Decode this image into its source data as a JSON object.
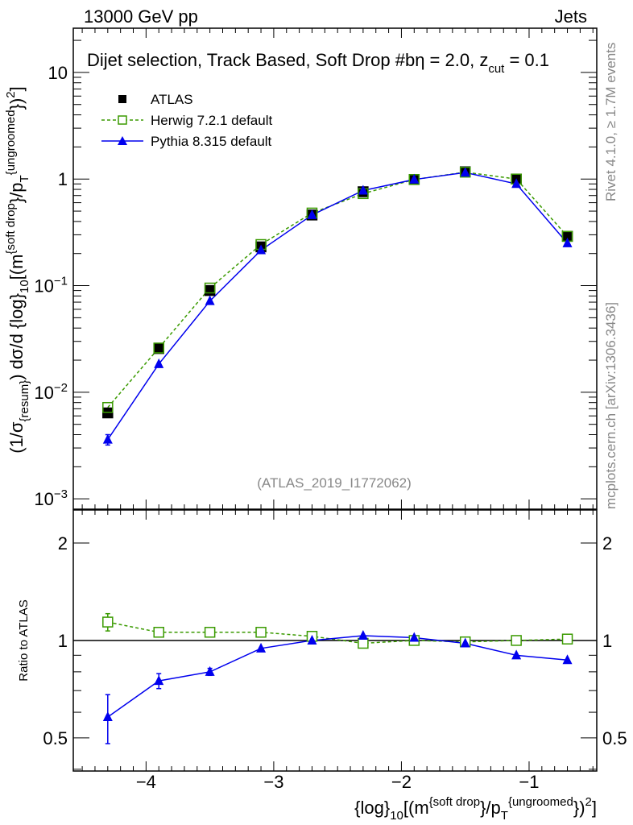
{
  "header": {
    "left": "13000 GeV pp",
    "right": "Jets"
  },
  "side_labels": {
    "rivet": "Rivet 4.1.0, ≥ 1.7M events",
    "mcplots": "mcplots.cern.ch [arXiv:1306.3436]"
  },
  "analysis_id": "(ATLAS_2019_I1772062)",
  "title_parts": {
    "a": "Dijet selection, Track Based, Soft Drop #b",
    "b": "η = 2.0, z",
    "sub": "cut",
    "c": " = 0.1"
  },
  "colors": {
    "atlas": "#000000",
    "herwig": "#3a9a00",
    "pythia": "#0000ee"
  },
  "chart_data": [
    {
      "type": "line",
      "title": "Dijet selection, Track Based, Soft Drop #bη = 2.0, z_cut = 0.1",
      "yscale": "log",
      "ylim": [
        0.0008,
        26
      ],
      "xlim": [
        -4.57,
        -0.47
      ],
      "ylabel_parts": [
        [
          "n",
          "(1/σ"
        ],
        [
          "sub",
          "{resum}"
        ],
        [
          "n",
          ") dσ/d {log}"
        ],
        [
          "sub",
          "10"
        ],
        [
          "n",
          "[(m"
        ],
        [
          "sup",
          "{soft drop"
        ],
        [
          "n",
          "}/p"
        ],
        [
          "sub",
          "T"
        ],
        [
          "sup",
          "{ungroomed"
        ],
        [
          "n",
          "})"
        ],
        [
          "sup",
          "2"
        ],
        [
          "n",
          "]"
        ]
      ],
      "yticks": [
        {
          "v": 0.001,
          "m": "10",
          "e": "−3"
        },
        {
          "v": 0.01,
          "m": "10",
          "e": "−2"
        },
        {
          "v": 0.1,
          "m": "10",
          "e": "−1"
        },
        {
          "v": 1,
          "m": "1",
          "e": ""
        },
        {
          "v": 10,
          "m": "10",
          "e": ""
        }
      ],
      "legend": {
        "placement": "top-left",
        "entries": [
          "ATLAS",
          "Herwig 7.2.1 default",
          "Pythia 8.315 default"
        ]
      },
      "x": [
        -4.3,
        -3.9,
        -3.5,
        -3.1,
        -2.7,
        -2.3,
        -1.9,
        -1.5,
        -1.1,
        -0.7
      ],
      "series": [
        {
          "name": "ATLAS",
          "values": [
            0.0064,
            0.0257,
            0.09,
            0.231,
            0.46,
            0.76,
            0.99,
            1.17,
            1.0,
            0.29
          ]
        },
        {
          "name": "Herwig 7.2.1 default",
          "values": [
            0.0072,
            0.026,
            0.095,
            0.243,
            0.48,
            0.73,
            0.99,
            1.16,
            1.0,
            0.29
          ]
        },
        {
          "name": "Pythia 8.315 default",
          "values": [
            0.0036,
            0.0184,
            0.0718,
            0.215,
            0.46,
            0.78,
            0.99,
            1.15,
            0.9,
            0.25
          ],
          "yerr_low": [
            0.0004,
            0,
            0,
            0,
            0,
            0,
            0,
            0,
            0,
            0
          ],
          "yerr_high": [
            0.0004,
            0,
            0,
            0,
            0,
            0,
            0,
            0,
            0,
            0
          ]
        }
      ]
    },
    {
      "type": "line",
      "yscale": "log",
      "ylim": [
        0.395,
        2.53
      ],
      "xlim": [
        -4.57,
        -0.47
      ],
      "ylabel": "Ratio to ATLAS",
      "yticks": [
        {
          "v": 0.5,
          "m": "0.5"
        },
        {
          "v": 1,
          "m": "1"
        },
        {
          "v": 2,
          "m": "2"
        }
      ],
      "xticks": [
        {
          "v": -4,
          "m": "−4"
        },
        {
          "v": -3,
          "m": "−3"
        },
        {
          "v": -2,
          "m": "−2"
        },
        {
          "v": -1,
          "m": "−1"
        }
      ],
      "xlabel_parts": [
        [
          "n",
          "{log}"
        ],
        [
          "sub",
          "10"
        ],
        [
          "n",
          "[(m"
        ],
        [
          "sup",
          "{soft drop"
        ],
        [
          "n",
          "}/p"
        ],
        [
          "sub",
          "T"
        ],
        [
          "sup",
          "{ungroomed"
        ],
        [
          "n",
          "})"
        ],
        [
          "sup",
          "2"
        ],
        [
          "n",
          "]"
        ]
      ],
      "reference": 1,
      "x": [
        -4.3,
        -3.9,
        -3.5,
        -3.1,
        -2.7,
        -2.3,
        -1.9,
        -1.5,
        -1.1,
        -0.7
      ],
      "series": [
        {
          "name": "Herwig 7.2.1 default",
          "values": [
            1.14,
            1.06,
            1.06,
            1.06,
            1.03,
            0.98,
            1.0,
            0.99,
            1.0,
            1.01
          ],
          "yerr": [
            0.07,
            0.03,
            0,
            0,
            0,
            0,
            0,
            0,
            0,
            0
          ]
        },
        {
          "name": "Pythia 8.315 default",
          "values": [
            0.58,
            0.75,
            0.8,
            0.945,
            1.0,
            1.035,
            1.02,
            0.98,
            0.9,
            0.87
          ],
          "yerr": [
            0.1,
            0.04,
            0.02,
            0,
            0,
            0,
            0,
            0,
            0,
            0
          ]
        }
      ]
    }
  ]
}
